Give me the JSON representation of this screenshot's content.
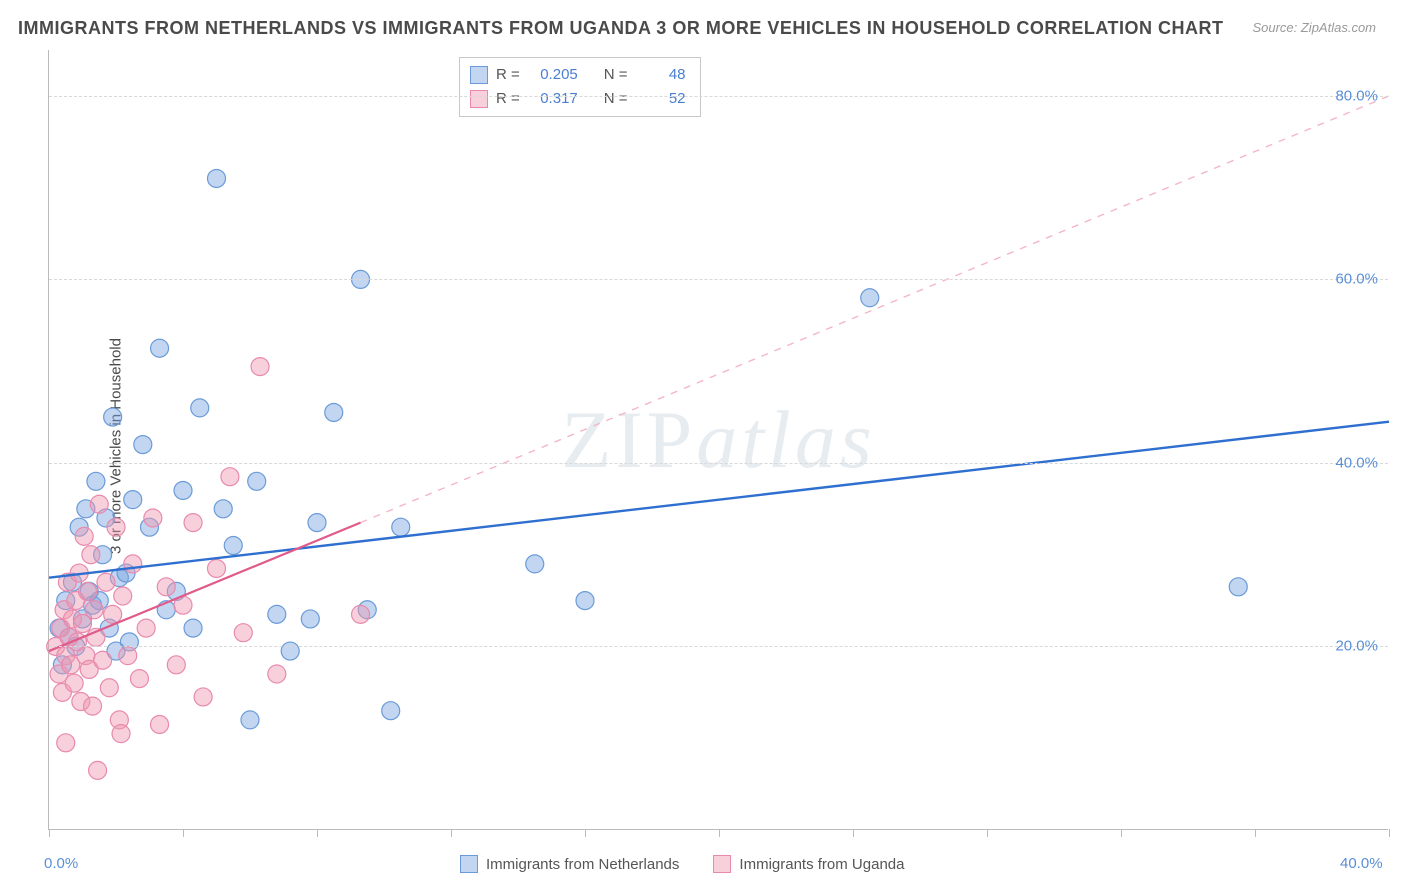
{
  "title": "IMMIGRANTS FROM NETHERLANDS VS IMMIGRANTS FROM UGANDA 3 OR MORE VEHICLES IN HOUSEHOLD CORRELATION CHART",
  "source": "Source: ZipAtlas.com",
  "y_axis_label": "3 or more Vehicles in Household",
  "watermark_a": "ZIP",
  "watermark_b": "atlas",
  "chart": {
    "type": "scatter",
    "x_min": 0.0,
    "x_max": 40.0,
    "y_min": 0.0,
    "y_max": 85.0,
    "y_ticks": [
      20.0,
      40.0,
      60.0,
      80.0
    ],
    "y_tick_labels": [
      "20.0%",
      "40.0%",
      "60.0%",
      "80.0%"
    ],
    "x_ticks": [
      0.0,
      4.0,
      8.0,
      12.0,
      16.0,
      20.0,
      24.0,
      28.0,
      32.0,
      36.0,
      40.0
    ],
    "x_tick_labels_shown": {
      "0.0": "0.0%",
      "40.0": "40.0%"
    },
    "grid_color": "#d8d8d8",
    "background_color": "#ffffff",
    "axis_color": "#bbbbbb",
    "tick_label_color": "#5a8fd6",
    "series": [
      {
        "name": "Immigrants from Netherlands",
        "marker_color_fill": "rgba(120,165,225,0.45)",
        "marker_color_stroke": "#6a9bd8",
        "marker_radius": 9,
        "trend": {
          "solid": true,
          "color": "#2f6fd0",
          "width": 2.4,
          "x1": 0.0,
          "y1": 27.5,
          "x2": 40.0,
          "y2": 44.5
        },
        "points": [
          [
            0.3,
            22
          ],
          [
            0.4,
            18
          ],
          [
            0.5,
            25
          ],
          [
            0.6,
            21
          ],
          [
            0.7,
            27
          ],
          [
            0.8,
            20
          ],
          [
            0.9,
            33
          ],
          [
            1.0,
            23
          ],
          [
            1.1,
            35
          ],
          [
            1.2,
            26
          ],
          [
            1.3,
            24.5
          ],
          [
            1.4,
            38
          ],
          [
            1.5,
            25
          ],
          [
            1.6,
            30
          ],
          [
            1.8,
            22
          ],
          [
            1.9,
            45
          ],
          [
            2.0,
            19.5
          ],
          [
            2.1,
            27.5
          ],
          [
            2.3,
            28
          ],
          [
            2.5,
            36
          ],
          [
            2.8,
            42
          ],
          [
            3.0,
            33
          ],
          [
            3.3,
            52.5
          ],
          [
            3.5,
            24
          ],
          [
            4.0,
            37
          ],
          [
            4.3,
            22
          ],
          [
            4.5,
            46
          ],
          [
            5.0,
            71
          ],
          [
            5.2,
            35
          ],
          [
            5.5,
            31
          ],
          [
            6.0,
            12
          ],
          [
            6.2,
            38
          ],
          [
            6.8,
            23.5
          ],
          [
            7.2,
            19.5
          ],
          [
            7.8,
            23
          ],
          [
            8.0,
            33.5
          ],
          [
            8.5,
            45.5
          ],
          [
            9.3,
            60
          ],
          [
            9.5,
            24
          ],
          [
            10.2,
            13
          ],
          [
            10.5,
            33
          ],
          [
            14.5,
            29
          ],
          [
            16.0,
            25
          ],
          [
            24.5,
            58
          ],
          [
            35.5,
            26.5
          ],
          [
            1.7,
            34
          ],
          [
            2.4,
            20.5
          ],
          [
            3.8,
            26
          ]
        ]
      },
      {
        "name": "Immigrants from Uganda",
        "marker_color_fill": "rgba(240,150,175,0.45)",
        "marker_color_stroke": "#e88aae",
        "marker_radius": 9,
        "trend": {
          "solid_portion": {
            "color": "#e05a8a",
            "width": 2.2,
            "x1": 0.0,
            "y1": 19.5,
            "x2": 9.3,
            "y2": 33.5
          },
          "dashed_portion": {
            "color": "#f4b6c9",
            "width": 1.4,
            "x1": 9.3,
            "y1": 33.5,
            "x2": 40.0,
            "y2": 80.0
          }
        },
        "points": [
          [
            0.2,
            20
          ],
          [
            0.3,
            17
          ],
          [
            0.35,
            22
          ],
          [
            0.4,
            15
          ],
          [
            0.45,
            24
          ],
          [
            0.5,
            19
          ],
          [
            0.55,
            27
          ],
          [
            0.6,
            21
          ],
          [
            0.65,
            18
          ],
          [
            0.7,
            23
          ],
          [
            0.75,
            16
          ],
          [
            0.8,
            25
          ],
          [
            0.85,
            20.5
          ],
          [
            0.9,
            28
          ],
          [
            0.95,
            14
          ],
          [
            1.0,
            22.5
          ],
          [
            1.05,
            32
          ],
          [
            1.1,
            19
          ],
          [
            1.15,
            26
          ],
          [
            1.2,
            17.5
          ],
          [
            1.25,
            30
          ],
          [
            1.3,
            13.5
          ],
          [
            1.35,
            24
          ],
          [
            1.4,
            21
          ],
          [
            1.5,
            35.5
          ],
          [
            1.6,
            18.5
          ],
          [
            1.7,
            27
          ],
          [
            1.8,
            15.5
          ],
          [
            1.9,
            23.5
          ],
          [
            2.0,
            33
          ],
          [
            2.1,
            12
          ],
          [
            2.2,
            25.5
          ],
          [
            2.35,
            19
          ],
          [
            2.5,
            29
          ],
          [
            2.7,
            16.5
          ],
          [
            2.9,
            22
          ],
          [
            3.1,
            34
          ],
          [
            3.3,
            11.5
          ],
          [
            3.5,
            26.5
          ],
          [
            3.8,
            18
          ],
          [
            4.0,
            24.5
          ],
          [
            4.3,
            33.5
          ],
          [
            4.6,
            14.5
          ],
          [
            5.0,
            28.5
          ],
          [
            5.4,
            38.5
          ],
          [
            5.8,
            21.5
          ],
          [
            6.3,
            50.5
          ],
          [
            6.8,
            17
          ],
          [
            1.45,
            6.5
          ],
          [
            0.5,
            9.5
          ],
          [
            2.15,
            10.5
          ],
          [
            9.3,
            23.5
          ]
        ]
      }
    ]
  },
  "legend_top": {
    "rows": [
      {
        "swatch_fill": "rgba(120,165,225,0.45)",
        "swatch_stroke": "#6a9bd8",
        "r_label": "R =",
        "r_val": "0.205",
        "n_label": "N =",
        "n_val": "48"
      },
      {
        "swatch_fill": "rgba(240,150,175,0.45)",
        "swatch_stroke": "#e88aae",
        "r_label": "R =",
        "r_val": "0.317",
        "n_label": "N =",
        "n_val": "52"
      }
    ]
  },
  "legend_bottom": {
    "items": [
      {
        "swatch_fill": "rgba(120,165,225,0.45)",
        "swatch_stroke": "#6a9bd8",
        "label": "Immigrants from Netherlands"
      },
      {
        "swatch_fill": "rgba(240,150,175,0.45)",
        "swatch_stroke": "#e88aae",
        "label": "Immigrants from Uganda"
      }
    ]
  }
}
